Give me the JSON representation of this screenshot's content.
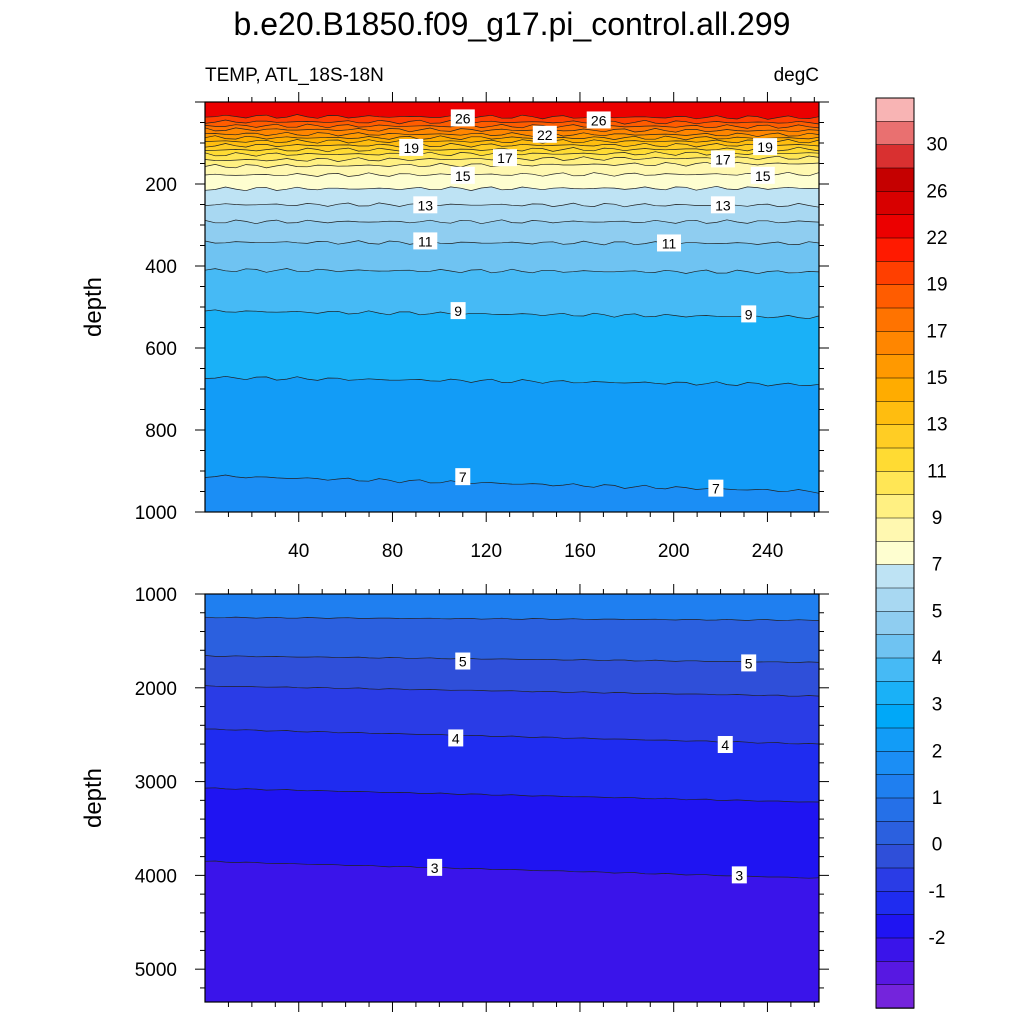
{
  "figure_title": "b.e20.B1850.f09_g17.pi_control.all.299",
  "variable_label": "TEMP, ATL_18S-18N",
  "units_label": "degC",
  "chart_data": [
    {
      "type": "contour",
      "panel": "upper",
      "ylabel": "depth",
      "xlabel": "",
      "xlim": [
        0,
        262
      ],
      "ylim": [
        1000,
        0
      ],
      "xticks": [
        40,
        80,
        120,
        160,
        200,
        240
      ],
      "yticks": [
        200,
        400,
        600,
        800,
        1000
      ],
      "contours": [
        {
          "level": 27,
          "depth_start": 35,
          "depth_end": 38
        },
        {
          "level": 26,
          "depth_start": 48,
          "depth_end": 50
        },
        {
          "level": 25,
          "depth_start": 58,
          "depth_end": 60
        },
        {
          "level": 24,
          "depth_start": 67,
          "depth_end": 70
        },
        {
          "level": 23,
          "depth_start": 78,
          "depth_end": 80
        },
        {
          "level": 22,
          "depth_start": 87,
          "depth_end": 88
        },
        {
          "level": 21,
          "depth_start": 96,
          "depth_end": 96
        },
        {
          "level": 20,
          "depth_start": 106,
          "depth_end": 105
        },
        {
          "level": 19,
          "depth_start": 117,
          "depth_end": 115
        },
        {
          "level": 18,
          "depth_start": 128,
          "depth_end": 125
        },
        {
          "level": 17,
          "depth_start": 142,
          "depth_end": 136
        },
        {
          "level": 16,
          "depth_start": 157,
          "depth_end": 150
        },
        {
          "level": 15,
          "depth_start": 178,
          "depth_end": 176
        },
        {
          "level": 14,
          "depth_start": 212,
          "depth_end": 210
        },
        {
          "level": 13,
          "depth_start": 250,
          "depth_end": 252
        },
        {
          "level": 12,
          "depth_start": 292,
          "depth_end": 292
        },
        {
          "level": 11,
          "depth_start": 342,
          "depth_end": 345
        },
        {
          "level": 10,
          "depth_start": 410,
          "depth_end": 415
        },
        {
          "level": 9,
          "depth_start": 510,
          "depth_end": 525
        },
        {
          "level": 8,
          "depth_start": 672,
          "depth_end": 690
        },
        {
          "level": 7,
          "depth_start": 912,
          "depth_end": 950
        }
      ],
      "contour_labels": [
        {
          "text": "26",
          "x": 110,
          "depth": 40
        },
        {
          "text": "26",
          "x": 168,
          "depth": 45
        },
        {
          "text": "22",
          "x": 145,
          "depth": 80
        },
        {
          "text": "19",
          "x": 88,
          "depth": 112
        },
        {
          "text": "17",
          "x": 128,
          "depth": 137
        },
        {
          "text": "17",
          "x": 221,
          "depth": 140
        },
        {
          "text": "19",
          "x": 239,
          "depth": 110
        },
        {
          "text": "15",
          "x": 110,
          "depth": 180
        },
        {
          "text": "15",
          "x": 238,
          "depth": 180
        },
        {
          "text": "13",
          "x": 94,
          "depth": 252
        },
        {
          "text": "13",
          "x": 221,
          "depth": 252
        },
        {
          "text": "11",
          "x": 94,
          "depth": 340
        },
        {
          "text": "11",
          "x": 198,
          "depth": 345
        },
        {
          "text": "9",
          "x": 108,
          "depth": 510
        },
        {
          "text": "9",
          "x": 232,
          "depth": 518
        },
        {
          "text": "7",
          "x": 110,
          "depth": 915
        },
        {
          "text": "7",
          "x": 218,
          "depth": 943
        }
      ]
    },
    {
      "type": "contour",
      "panel": "lower",
      "ylabel": "depth",
      "xlabel": "",
      "xlim": [
        0,
        262
      ],
      "ylim": [
        5350,
        1000
      ],
      "xticks": [
        40,
        80,
        120,
        160,
        200,
        240
      ],
      "yticks": [
        1000,
        2000,
        3000,
        4000,
        5000
      ],
      "contours": [
        {
          "level": 6,
          "depth_start": 1250,
          "depth_end": 1280
        },
        {
          "level": 5,
          "depth_start": 1660,
          "depth_end": 1730
        },
        {
          "level": 4.5,
          "depth_start": 1980,
          "depth_end": 2090
        },
        {
          "level": 4,
          "depth_start": 2440,
          "depth_end": 2600
        },
        {
          "level": 3.5,
          "depth_start": 3070,
          "depth_end": 3220
        },
        {
          "level": 3,
          "depth_start": 3850,
          "depth_end": 4030
        }
      ],
      "contour_labels": [
        {
          "text": "5",
          "x": 110,
          "depth": 1720
        },
        {
          "text": "5",
          "x": 232,
          "depth": 1740
        },
        {
          "text": "4",
          "x": 107,
          "depth": 2540
        },
        {
          "text": "4",
          "x": 222,
          "depth": 2610
        },
        {
          "text": "3",
          "x": 98,
          "depth": 3920
        },
        {
          "text": "3",
          "x": 228,
          "depth": 4000
        }
      ]
    }
  ],
  "colorbar": {
    "colors": [
      "#f8b4b4",
      "#e97070",
      "#d93030",
      "#c50000",
      "#d80000",
      "#ec0000",
      "#ff1a00",
      "#ff3f00",
      "#ff5c00",
      "#ff7300",
      "#ff8600",
      "#ff9900",
      "#ffac00",
      "#ffbd0f",
      "#ffcd24",
      "#ffdb33",
      "#ffe655",
      "#fff082",
      "#fff8b0",
      "#fefed0",
      "#bee3f4",
      "#a8d8f2",
      "#8fcdf0",
      "#6fc3f2",
      "#46baf5",
      "#1ab1f7",
      "#00a8f8",
      "#129cf7",
      "#1b8ef5",
      "#1f7ff0",
      "#2570e8",
      "#2b60df",
      "#2f4fd9",
      "#2a3ce6",
      "#1f2cf0",
      "#1f14f2",
      "#3a14ea",
      "#5718e2",
      "#7424dc"
    ],
    "labels": [
      "30",
      "26",
      "22",
      "19",
      "17",
      "15",
      "13",
      "11",
      "9",
      "7",
      "5",
      "4",
      "3",
      "2",
      "1",
      "0",
      "-1",
      "-2"
    ]
  }
}
